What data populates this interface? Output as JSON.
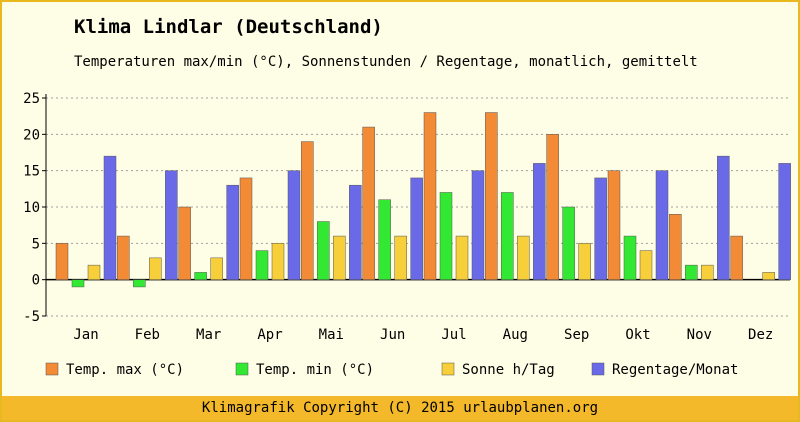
{
  "title": "Klima Lindlar (Deutschland)",
  "subtitle": "Temperaturen max/min (°C), Sonnenstunden / Regentage, monatlich, gemittelt",
  "footer": "Klimagrafik Copyright (C) 2015 urlaubplanen.org",
  "chart_data": {
    "type": "bar",
    "categories": [
      "Jan",
      "Feb",
      "Mar",
      "Apr",
      "Mai",
      "Jun",
      "Jul",
      "Aug",
      "Sep",
      "Okt",
      "Nov",
      "Dez"
    ],
    "series": [
      {
        "name": "Temp. max (°C)",
        "color": "#f28a36",
        "values": [
          5,
          6,
          10,
          14,
          19,
          21,
          23,
          23,
          20,
          15,
          9,
          6
        ]
      },
      {
        "name": "Temp. min (°C)",
        "color": "#33e833",
        "values": [
          -1,
          -1,
          1,
          4,
          8,
          11,
          12,
          12,
          10,
          6,
          2,
          0
        ]
      },
      {
        "name": "Sonne h/Tag",
        "color": "#f7cf3a",
        "values": [
          2,
          3,
          3,
          5,
          6,
          6,
          6,
          6,
          5,
          4,
          2,
          1
        ]
      },
      {
        "name": "Regentage/Monat",
        "color": "#6a6ae8",
        "values": [
          17,
          15,
          13,
          15,
          13,
          14,
          15,
          16,
          14,
          15,
          17,
          16
        ]
      }
    ],
    "ylim": [
      -5,
      25
    ],
    "yticks": [
      -5,
      0,
      5,
      10,
      15,
      20,
      25
    ],
    "grid": true,
    "legend": "bottom"
  }
}
